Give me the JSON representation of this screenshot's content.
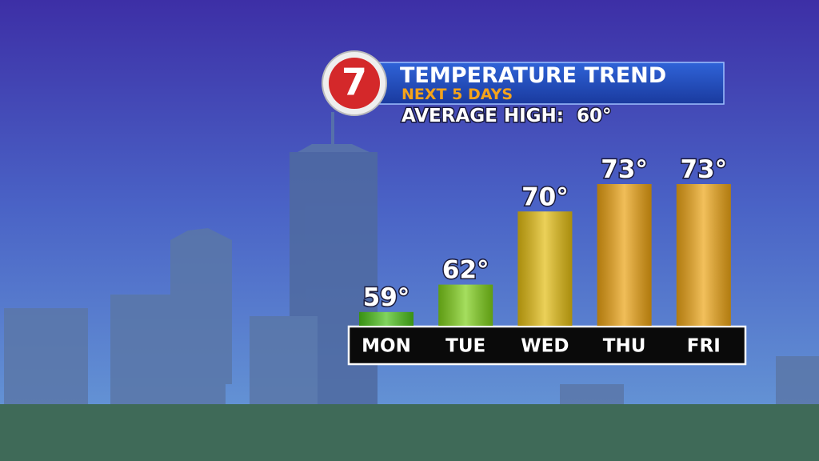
{
  "chart_data": {
    "type": "bar",
    "logo": "7",
    "title": "TEMPERATURE TREND",
    "subtitle": "NEXT 5 DAYS",
    "annotation": "AVERAGE HIGH:  60°",
    "categories": [
      "MON",
      "TUE",
      "WED",
      "THU",
      "FRI"
    ],
    "values": [
      59,
      62,
      70,
      73,
      73
    ],
    "value_labels": [
      "59°",
      "62°",
      "70°",
      "73°",
      "73°"
    ],
    "colors": [
      "#4cc21a",
      "#7fd01a",
      "#e3bd12",
      "#eba212",
      "#eda516"
    ]
  }
}
